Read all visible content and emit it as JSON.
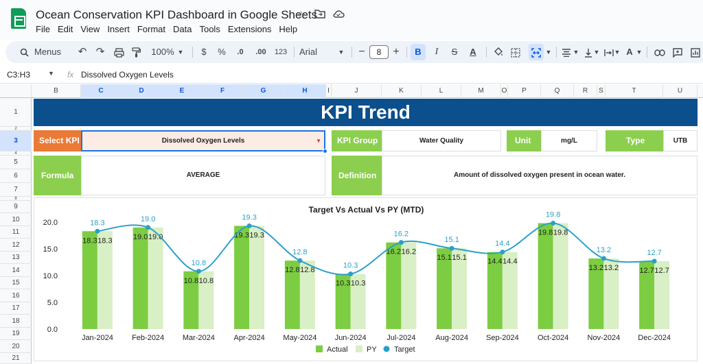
{
  "window": {
    "doc_title": "Ocean Conservation KPI Dashboard in Google Sheets",
    "menus": [
      "File",
      "Edit",
      "View",
      "Insert",
      "Format",
      "Data",
      "Tools",
      "Extensions",
      "Help"
    ]
  },
  "toolbar": {
    "menus_label": "Menus",
    "zoom": "100%",
    "currency": "$",
    "percent": "%",
    "dec_decrease": ".0",
    "dec_increase": ".00",
    "number_format": "123",
    "font": "Arial",
    "font_size": "8",
    "bold": "B",
    "italic": "I",
    "strike": "S",
    "text_color": "A",
    "minus": "−",
    "plus": "+"
  },
  "formula_bar": {
    "name_box": "C3:H3",
    "fx": "fx",
    "content": "Dissolved Oxygen Levels"
  },
  "columns": [
    "B",
    "C",
    "D",
    "E",
    "F",
    "G",
    "H",
    "I",
    "J",
    "K",
    "L",
    "M",
    "O",
    "P",
    "Q",
    "R",
    "S",
    "T",
    "U"
  ],
  "rows": [
    "1",
    "2",
    "3",
    "4",
    "5",
    "6",
    "7",
    "8",
    "9",
    "10",
    "11",
    "12",
    "13",
    "14",
    "15",
    "16",
    "17",
    "18",
    "19",
    "20",
    "21"
  ],
  "dashboard": {
    "title": "KPI Trend",
    "select_kpi_label": "Select KPI",
    "select_kpi_value": "Dissolved Oxygen Levels",
    "kpi_group_label": "KPI Group",
    "kpi_group_value": "Water Quality",
    "unit_label": "Unit",
    "unit_value": "mg/L",
    "type_label": "Type",
    "type_value": "UTB",
    "formula_label": "Formula",
    "formula_value": "AVERAGE",
    "definition_label": "Definition",
    "definition_value": "Amount of dissolved oxygen present in ocean water."
  },
  "colors": {
    "banner": "#0b4f8c",
    "orange_label": "#ea7a36",
    "green_label": "#8ccf4f",
    "actual": "#7ccd42",
    "py": "#d9efc5",
    "target": "#2aa0c8"
  },
  "chart_data": {
    "type": "bar",
    "title": "Target Vs Actual Vs PY (MTD)",
    "categories": [
      "Jan-2024",
      "Feb-2024",
      "Mar-2024",
      "Apr-2024",
      "May-2024",
      "Jun-2024",
      "Jul-2024",
      "Aug-2024",
      "Sep-2024",
      "Oct-2024",
      "Nov-2024",
      "Dec-2024"
    ],
    "series": [
      {
        "name": "Actual",
        "type": "bar",
        "values": [
          18.3,
          19.0,
          10.8,
          19.3,
          12.8,
          10.3,
          16.2,
          15.1,
          14.4,
          19.8,
          13.2,
          12.7
        ]
      },
      {
        "name": "PY",
        "type": "bar",
        "values": [
          18.3,
          19.0,
          10.8,
          19.3,
          12.8,
          10.3,
          16.2,
          15.1,
          14.4,
          19.8,
          13.2,
          12.7
        ]
      },
      {
        "name": "Target",
        "type": "line",
        "values": [
          18.3,
          19.0,
          10.8,
          19.3,
          12.8,
          10.3,
          16.2,
          15.1,
          14.4,
          19.8,
          13.2,
          12.7
        ]
      }
    ],
    "value_labels": {
      "Actual": [
        "18.3",
        "19.0",
        "10.8",
        "19.3",
        "12.8",
        "10.3",
        "16.2",
        "15.1",
        "14.4",
        "19.8",
        "13.2",
        "12.7"
      ],
      "PY": [
        "18.3",
        "19.0",
        "10.8",
        "19.3",
        "12.8",
        "10.3",
        "16.2",
        "15.1",
        "14.4",
        "19.8",
        "13.2",
        "12.7"
      ],
      "Target": [
        "18.3",
        "19.0",
        "10.8",
        "19.3",
        "12.8",
        "10.3",
        "16.2",
        "15.1",
        "14.4",
        "19.8",
        "13.2",
        "12.7"
      ]
    },
    "ylim": [
      0,
      20
    ],
    "yticks": [
      "0.0",
      "5.0",
      "10.0",
      "15.0",
      "20.0"
    ],
    "legend": [
      "Actual",
      "PY",
      "Target"
    ],
    "legend_position": "bottom",
    "grid": false
  }
}
